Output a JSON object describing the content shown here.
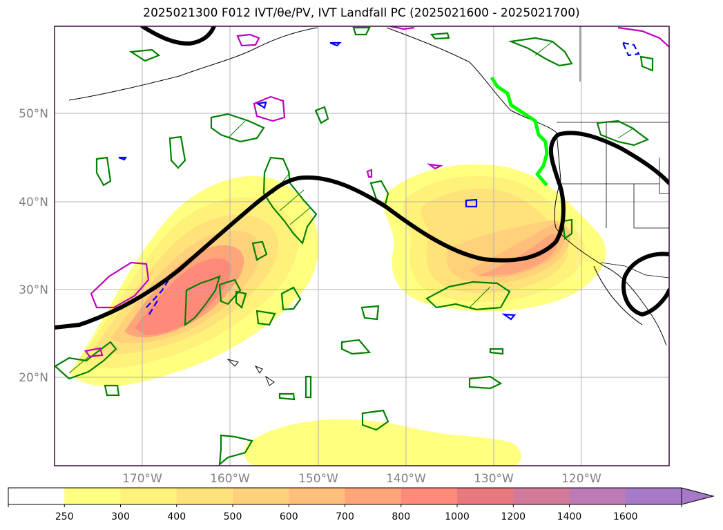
{
  "title": "2025021300 F012 IVT/θe/PV, IVT Landfall PC (2025021600 - 2025021700)",
  "lat_labels": [
    "50°N",
    "40°N",
    "30°N",
    "20°N"
  ],
  "lon_labels": [
    "170°W",
    "160°W",
    "150°W",
    "140°W",
    "130°W",
    "120°W"
  ],
  "colorbar": {
    "tick_labels": [
      "250",
      "300",
      "400",
      "500",
      "600",
      "700",
      "800",
      "1000",
      "1200",
      "1400",
      "1600"
    ],
    "colors": [
      "#ffffff",
      "#ffff80",
      "#fff27a",
      "#ffe27a",
      "#ffd17a",
      "#ffbf7a",
      "#ffa57a",
      "#ff8a7a",
      "#e8797f",
      "#d27a9a",
      "#bd7ab7",
      "#a67ac8"
    ]
  },
  "colors": {
    "jet": "#000000",
    "pv_positive": "#008000",
    "pv_negative": "#0000ff",
    "theta_e": "#c000c0",
    "landfall": "#00ff00",
    "frame": "#3a0a3a",
    "grid": "#b0b0b0"
  }
}
